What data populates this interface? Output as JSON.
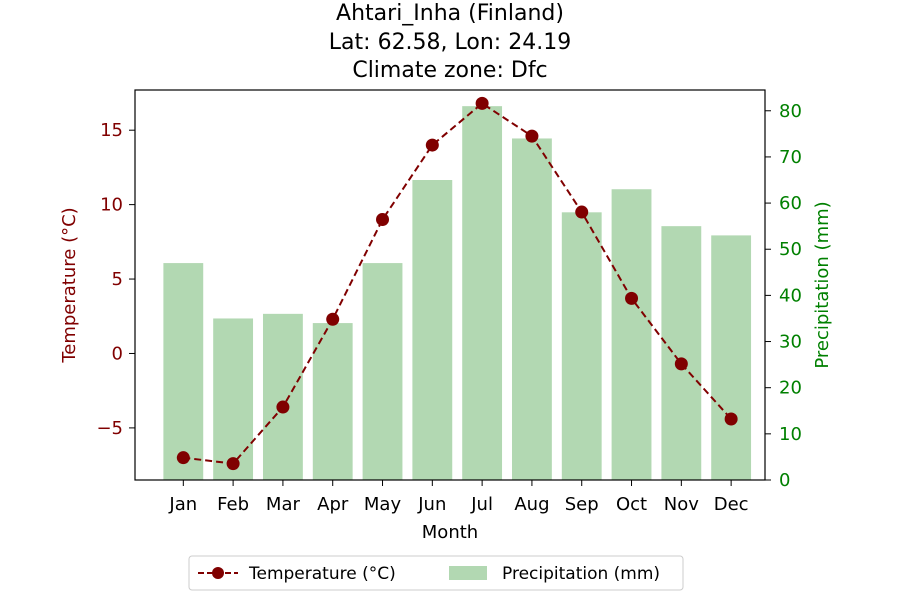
{
  "chart_data": {
    "type": "bar+line",
    "title_lines": [
      "Ahtari_Inha (Finland)",
      "Lat: 62.58, Lon: 24.19",
      "Climate zone: Dfc"
    ],
    "xlabel": "Month",
    "categories": [
      "Jan",
      "Feb",
      "Mar",
      "Apr",
      "May",
      "Jun",
      "Jul",
      "Aug",
      "Sep",
      "Oct",
      "Nov",
      "Dec"
    ],
    "temperature": {
      "name": "Temperature (°C)",
      "ylabel": "Temperature (°C)",
      "color": "#800000",
      "values": [
        -7.0,
        -7.4,
        -3.6,
        2.3,
        9.0,
        14.0,
        16.8,
        14.6,
        9.5,
        3.7,
        -0.7,
        -4.4
      ],
      "ylim": [
        -8.5,
        17.7
      ],
      "ticks": [
        -5,
        0,
        5,
        10,
        15
      ],
      "tick_labels": [
        "−5",
        "0",
        "5",
        "10",
        "15"
      ]
    },
    "precipitation": {
      "name": "Precipitation (mm)",
      "ylabel": "Precipitation (mm)",
      "color": "#008000",
      "bar_color": "#b2d8b2",
      "values": [
        47,
        35,
        36,
        34,
        47,
        65,
        81,
        74,
        58,
        63,
        55,
        53
      ],
      "ylim": [
        0,
        84.5
      ],
      "ticks": [
        0,
        10,
        20,
        30,
        40,
        50,
        60,
        70,
        80
      ],
      "tick_labels": [
        "0",
        "10",
        "20",
        "30",
        "40",
        "50",
        "60",
        "70",
        "80"
      ]
    },
    "legend": {
      "placement": "bottom-center",
      "entries": [
        "Temperature (°C)",
        "Precipitation (mm)"
      ]
    }
  }
}
